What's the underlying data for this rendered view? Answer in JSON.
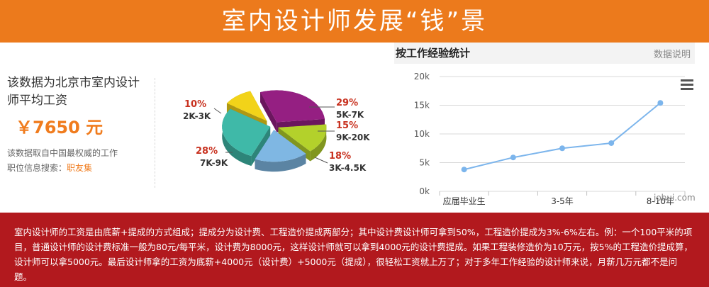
{
  "header": {
    "title": "室内设计师发展“钱”景"
  },
  "salary": {
    "heading": "该数据为北京市室内设计师平均工资",
    "amount": "￥7650 元",
    "source_line": "该数据取自中国最权威的工作",
    "search_label": "职位信息搜索：",
    "search_link": "职友集"
  },
  "pie_chart": {
    "chart_data": {
      "type": "pie",
      "slices": [
        {
          "pct_label": "29%",
          "range": "5K-7K",
          "value": 29,
          "color": "#951f82"
        },
        {
          "pct_label": "15%",
          "range": "9K-20K",
          "value": 15,
          "color": "#b3d12b"
        },
        {
          "pct_label": "18%",
          "range": "3K-4.5K",
          "value": 18,
          "color": "#7fb7e3"
        },
        {
          "pct_label": "28%",
          "range": "7K-9K",
          "value": 28,
          "color": "#3fb9a8"
        },
        {
          "pct_label": "10%",
          "range": "2K-3K",
          "value": 10,
          "color": "#f2d319"
        }
      ]
    }
  },
  "line_chart": {
    "title": "按工作经验统计",
    "note": "数据说明",
    "chart_data": {
      "type": "line",
      "categories": [
        "应届毕业生",
        "",
        "3-5年",
        "",
        "8-10年"
      ],
      "values": [
        3800,
        5900,
        7500,
        8400,
        15400
      ],
      "yticks": [
        "0k",
        "5k",
        "10k",
        "15k",
        "20k"
      ],
      "ylim": [
        0,
        20000
      ],
      "color": "#7cb5ec"
    },
    "watermark": "jobui.com"
  },
  "footer": {
    "text": "室内设计师的工资是由底薪+提成的方式组成；提成分为设计费、工程造价提成两部分；其中设计费设计师可拿到50%，工程造价提成为3%-6%左右。例：一个100平米的项目，普通设计师的设计费标准一般为80元/每平米，设计费为8000元，这样设计师就可以拿到4000元的设计费提成。如果工程装修造价为10万元，按5%的工程造价提成算，设计师可以拿5000元。最后设计师拿的工资为底薪+4000元（设计费）+5000元（提成），很轻松工资就上万了；对于多年工作经验的设计师来说，月薪几万元都不是问题。"
  }
}
